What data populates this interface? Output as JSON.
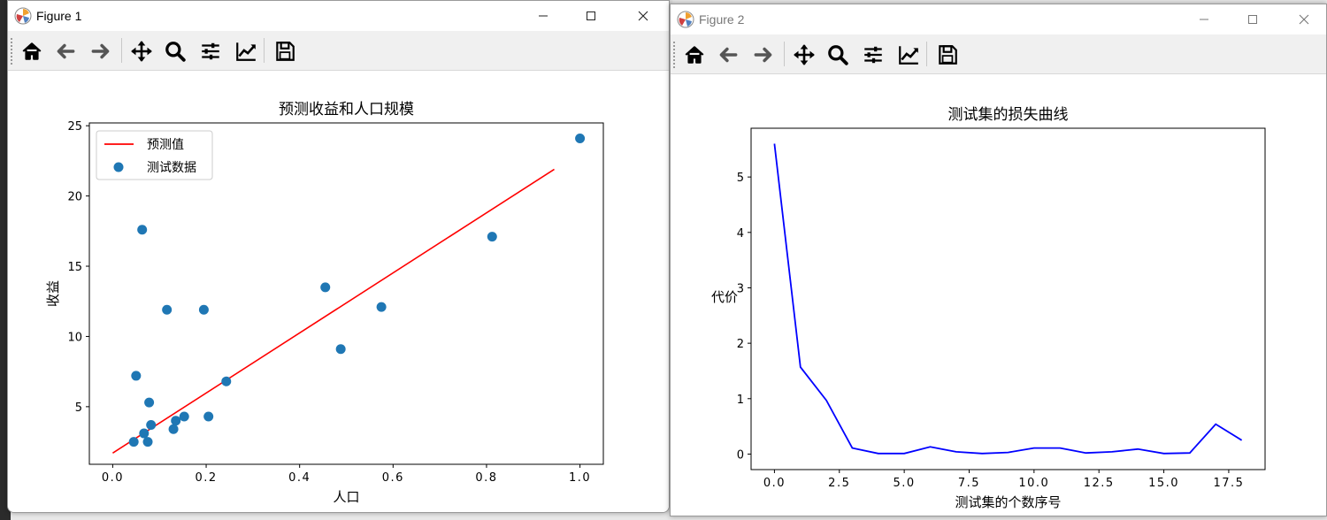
{
  "windows": [
    {
      "title": "Figure 1",
      "toolbar": [
        "home-icon",
        "back-icon",
        "forward-icon",
        "pan-icon",
        "zoom-icon",
        "configure-subplots-icon",
        "edit-axis-icon",
        "save-icon"
      ]
    },
    {
      "title": "Figure 2",
      "toolbar": [
        "home-icon",
        "back-icon",
        "forward-icon",
        "pan-icon",
        "zoom-icon",
        "configure-subplots-icon",
        "edit-axis-icon",
        "save-icon"
      ]
    }
  ],
  "chart_data": [
    {
      "type": "scatter",
      "title": "预测收益和人口规模",
      "xlabel": "人口",
      "ylabel": "收益",
      "xlim": [
        -0.05,
        1.05
      ],
      "ylim": [
        0.9,
        25.2
      ],
      "xticks": [
        0.0,
        0.2,
        0.4,
        0.6,
        0.8,
        1.0
      ],
      "xtick_labels": [
        "0.0",
        "0.2",
        "0.4",
        "0.6",
        "0.8",
        "1.0"
      ],
      "yticks": [
        5,
        10,
        15,
        20,
        25
      ],
      "ytick_labels": [
        "5",
        "10",
        "15",
        "20",
        "25"
      ],
      "legend": {
        "placement": "upper-left",
        "entries": [
          "预测值",
          "测试数据"
        ]
      },
      "series": [
        {
          "name": "预测值",
          "kind": "line",
          "color": "#ff0000",
          "x": [
            0.0,
            0.945
          ],
          "y": [
            1.7,
            21.9
          ]
        },
        {
          "name": "测试数据",
          "kind": "scatter",
          "color": "#1f77b4",
          "x": [
            0.045,
            0.05,
            0.063,
            0.067,
            0.075,
            0.078,
            0.082,
            0.116,
            0.13,
            0.135,
            0.153,
            0.195,
            0.205,
            0.243,
            0.455,
            0.488,
            0.575,
            0.812,
            1.0
          ],
          "y": [
            2.5,
            7.2,
            17.6,
            3.1,
            2.5,
            5.3,
            3.7,
            11.9,
            3.4,
            4.0,
            4.3,
            11.9,
            4.3,
            6.8,
            13.5,
            9.1,
            12.1,
            17.1,
            24.1
          ]
        }
      ]
    },
    {
      "type": "line",
      "title": "测试集的损失曲线",
      "xlabel": "测试集的个数序号",
      "ylabel": "代价",
      "xlim": [
        -0.9,
        18.9
      ],
      "ylim": [
        -0.28,
        5.88
      ],
      "xticks": [
        0,
        2.5,
        5,
        7.5,
        10,
        12.5,
        15,
        17.5
      ],
      "xtick_labels": [
        "0.0",
        "2.5",
        "5.0",
        "7.5",
        "10.0",
        "12.5",
        "15.0",
        "17.5"
      ],
      "yticks": [
        0,
        1,
        2,
        3,
        4,
        5
      ],
      "ytick_labels": [
        "0",
        "1",
        "2",
        "3",
        "4",
        "5"
      ],
      "series": [
        {
          "color": "#0000ff",
          "x": [
            0,
            1,
            2,
            3,
            4,
            5,
            6,
            7,
            8,
            9,
            10,
            11,
            12,
            13,
            14,
            15,
            16,
            17,
            18
          ],
          "y": [
            5.6,
            1.57,
            0.97,
            0.11,
            0.01,
            0.01,
            0.13,
            0.04,
            0.01,
            0.03,
            0.11,
            0.11,
            0.02,
            0.04,
            0.09,
            0.01,
            0.02,
            0.54,
            0.25
          ]
        }
      ]
    }
  ]
}
